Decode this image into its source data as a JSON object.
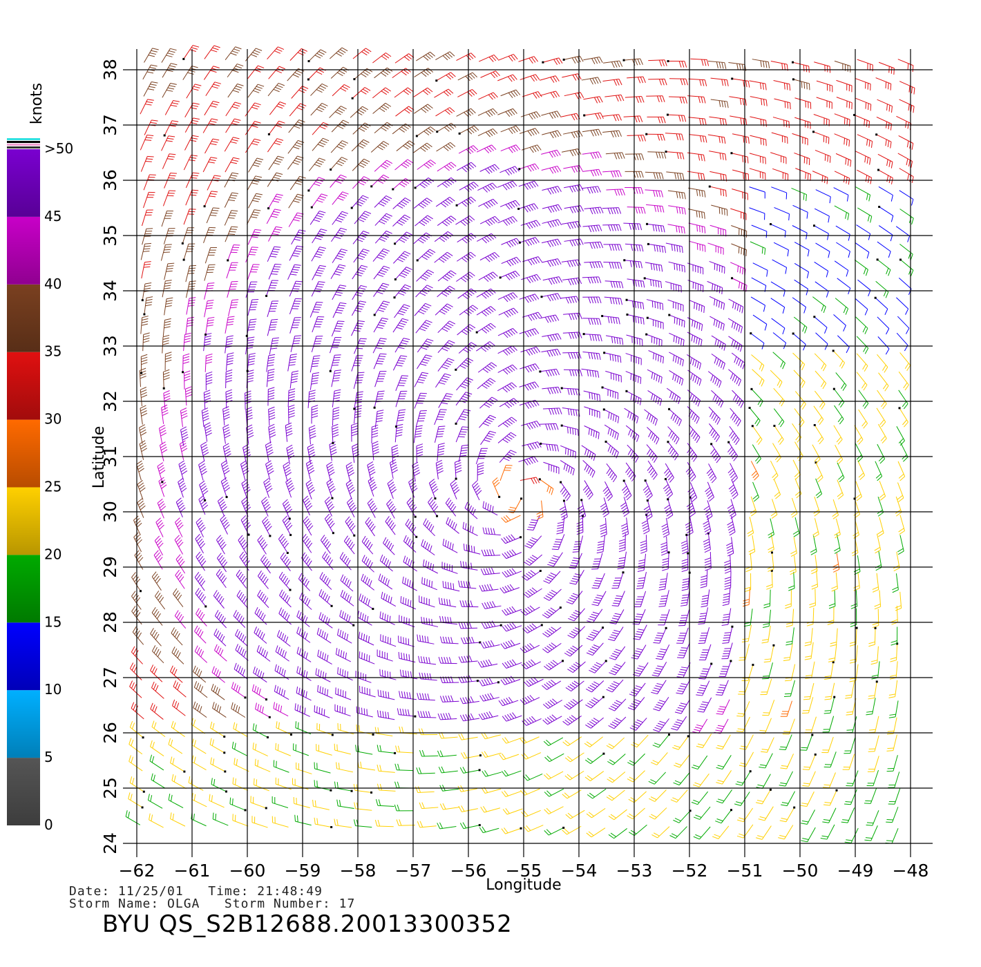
{
  "chart_data": {
    "type": "wind-barb-map",
    "xlabel": "Longitude",
    "ylabel": "Latitude",
    "xlim": [
      -62,
      -48
    ],
    "ylim": [
      24,
      38
    ],
    "x_ticks": [
      -62,
      -61,
      -60,
      -59,
      -58,
      -57,
      -56,
      -55,
      -54,
      -53,
      -52,
      -51,
      -50,
      -49,
      -48
    ],
    "y_ticks": [
      24,
      25,
      26,
      27,
      28,
      29,
      30,
      31,
      32,
      33,
      34,
      35,
      36,
      37,
      38
    ],
    "grid": true,
    "storm_center": {
      "lon": -55.1,
      "lat": 30.3
    },
    "colorbar": {
      "title": "knots",
      "bins": [
        {
          "min": 0,
          "max": 5,
          "color": "#555555"
        },
        {
          "min": 5,
          "max": 10,
          "color": "#00b0ff"
        },
        {
          "min": 10,
          "max": 15,
          "color": "#0000ff"
        },
        {
          "min": 15,
          "max": 20,
          "color": "#00aa00"
        },
        {
          "min": 20,
          "max": 25,
          "color": "#ffd000"
        },
        {
          "min": 25,
          "max": 30,
          "color": "#ff6a00"
        },
        {
          "min": 30,
          "max": 35,
          "color": "#e01010"
        },
        {
          "min": 35,
          "max": 40,
          "color": "#7a4020"
        },
        {
          "min": 40,
          "max": 45,
          "color": "#c800c8"
        },
        {
          "min": 45,
          "max": 50,
          "color": "#7a00d0"
        }
      ],
      "labels": [
        "0",
        "5",
        "10",
        "15",
        "20",
        "25",
        "30",
        "35",
        "40",
        "45",
        ">50"
      ]
    }
  },
  "info": {
    "date_line": "Date: 11/25/01   Time: 21:48:49",
    "storm_line": "Storm Name: OLGA   Storm Number: 17",
    "product_id": "BYU  QS_S2B12688.20013300352"
  }
}
